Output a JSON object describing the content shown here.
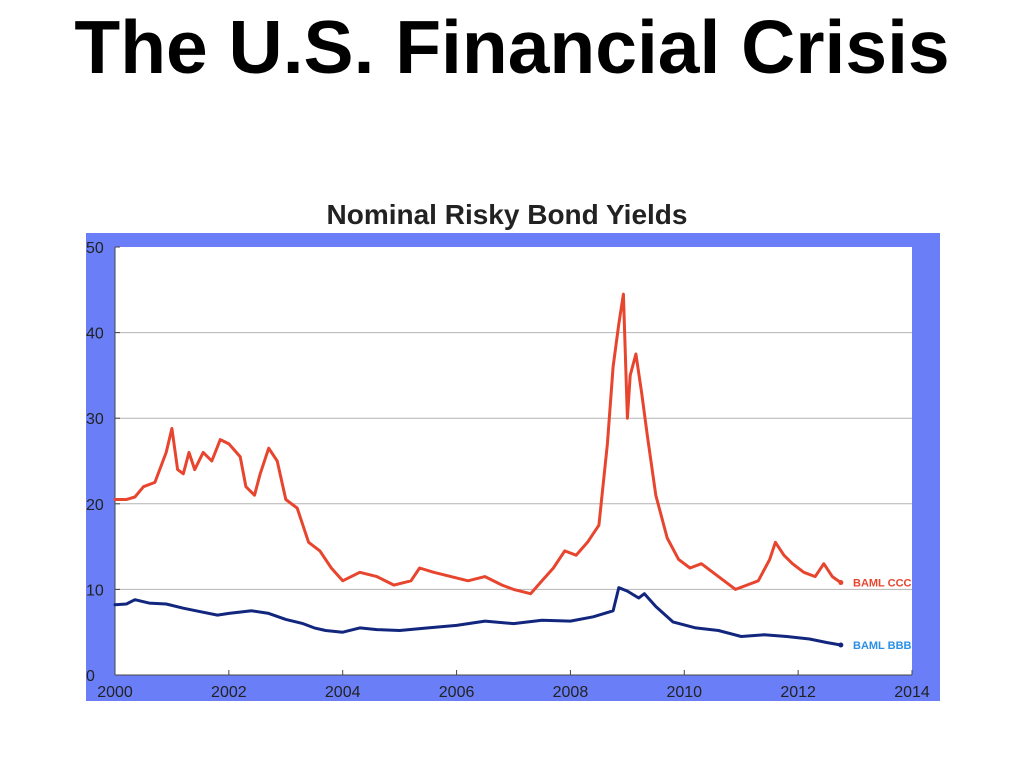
{
  "slide": {
    "title": "The U.S. Financial Crisis"
  },
  "colors": {
    "frame": "#6a7ff7",
    "plot_bg": "#ffffff",
    "grid": "#b4b4b4",
    "ccc": "#e8452f",
    "bbb": "#12267e",
    "bbb_label": "#2b8fe6"
  },
  "chart_data": {
    "type": "line",
    "title": "Nominal Risky Bond Yields",
    "xlabel": "",
    "ylabel": "",
    "xlim": [
      2000,
      2014
    ],
    "ylim": [
      0,
      50
    ],
    "xticks": [
      "2000",
      "2002",
      "2004",
      "2006",
      "2008",
      "2010",
      "2012",
      "2014"
    ],
    "yticks": [
      "0",
      "10",
      "20",
      "30",
      "40",
      "50"
    ],
    "grid": true,
    "series": [
      {
        "name": "BAML CCC",
        "x": [
          2000.0,
          2000.2,
          2000.35,
          2000.5,
          2000.7,
          2000.9,
          2001.0,
          2001.1,
          2001.2,
          2001.3,
          2001.4,
          2001.55,
          2001.7,
          2001.85,
          2002.0,
          2002.2,
          2002.3,
          2002.45,
          2002.55,
          2002.7,
          2002.85,
          2003.0,
          2003.2,
          2003.4,
          2003.6,
          2003.8,
          2004.0,
          2004.3,
          2004.6,
          2004.9,
          2005.2,
          2005.35,
          2005.6,
          2005.9,
          2006.2,
          2006.5,
          2006.8,
          2007.0,
          2007.3,
          2007.5,
          2007.7,
          2007.9,
          2008.1,
          2008.3,
          2008.5,
          2008.65,
          2008.75,
          2008.85,
          2008.93,
          2009.0,
          2009.05,
          2009.15,
          2009.25,
          2009.35,
          2009.5,
          2009.7,
          2009.9,
          2010.1,
          2010.3,
          2010.5,
          2010.7,
          2010.9,
          2011.1,
          2011.3,
          2011.5,
          2011.6,
          2011.75,
          2011.9,
          2012.1,
          2012.3,
          2012.45,
          2012.6,
          2012.75
        ],
        "values": [
          20.5,
          20.5,
          20.8,
          22.0,
          22.5,
          26.0,
          28.8,
          24.0,
          23.5,
          26.0,
          24.0,
          26.0,
          25.0,
          27.5,
          27.0,
          25.5,
          22.0,
          21.0,
          23.5,
          26.5,
          25.0,
          20.5,
          19.5,
          15.5,
          14.5,
          12.5,
          11.0,
          12.0,
          11.5,
          10.5,
          11.0,
          12.5,
          12.0,
          11.5,
          11.0,
          11.5,
          10.5,
          10.0,
          9.5,
          11.0,
          12.5,
          14.5,
          14.0,
          15.5,
          17.5,
          27.0,
          36.0,
          41.0,
          44.5,
          30.0,
          35.0,
          37.5,
          33.0,
          28.0,
          21.0,
          16.0,
          13.5,
          12.5,
          13.0,
          12.0,
          11.0,
          10.0,
          10.5,
          11.0,
          13.5,
          15.5,
          14.0,
          13.0,
          12.0,
          11.5,
          13.0,
          11.5,
          10.8
        ]
      },
      {
        "name": "BAML BBB",
        "x": [
          2000.0,
          2000.2,
          2000.35,
          2000.6,
          2000.9,
          2001.2,
          2001.5,
          2001.8,
          2002.0,
          2002.4,
          2002.7,
          2003.0,
          2003.3,
          2003.5,
          2003.7,
          2004.0,
          2004.3,
          2004.6,
          2005.0,
          2005.5,
          2006.0,
          2006.5,
          2007.0,
          2007.5,
          2008.0,
          2008.4,
          2008.75,
          2008.85,
          2009.0,
          2009.2,
          2009.3,
          2009.5,
          2009.8,
          2010.2,
          2010.6,
          2011.0,
          2011.4,
          2011.8,
          2012.2,
          2012.5,
          2012.75
        ],
        "values": [
          8.2,
          8.3,
          8.8,
          8.4,
          8.3,
          7.8,
          7.4,
          7.0,
          7.2,
          7.5,
          7.2,
          6.5,
          6.0,
          5.5,
          5.2,
          5.0,
          5.5,
          5.3,
          5.2,
          5.5,
          5.8,
          6.3,
          6.0,
          6.4,
          6.3,
          6.8,
          7.5,
          10.2,
          9.8,
          9.0,
          9.5,
          8.0,
          6.2,
          5.5,
          5.2,
          4.5,
          4.7,
          4.5,
          4.2,
          3.8,
          3.5
        ]
      }
    ]
  }
}
